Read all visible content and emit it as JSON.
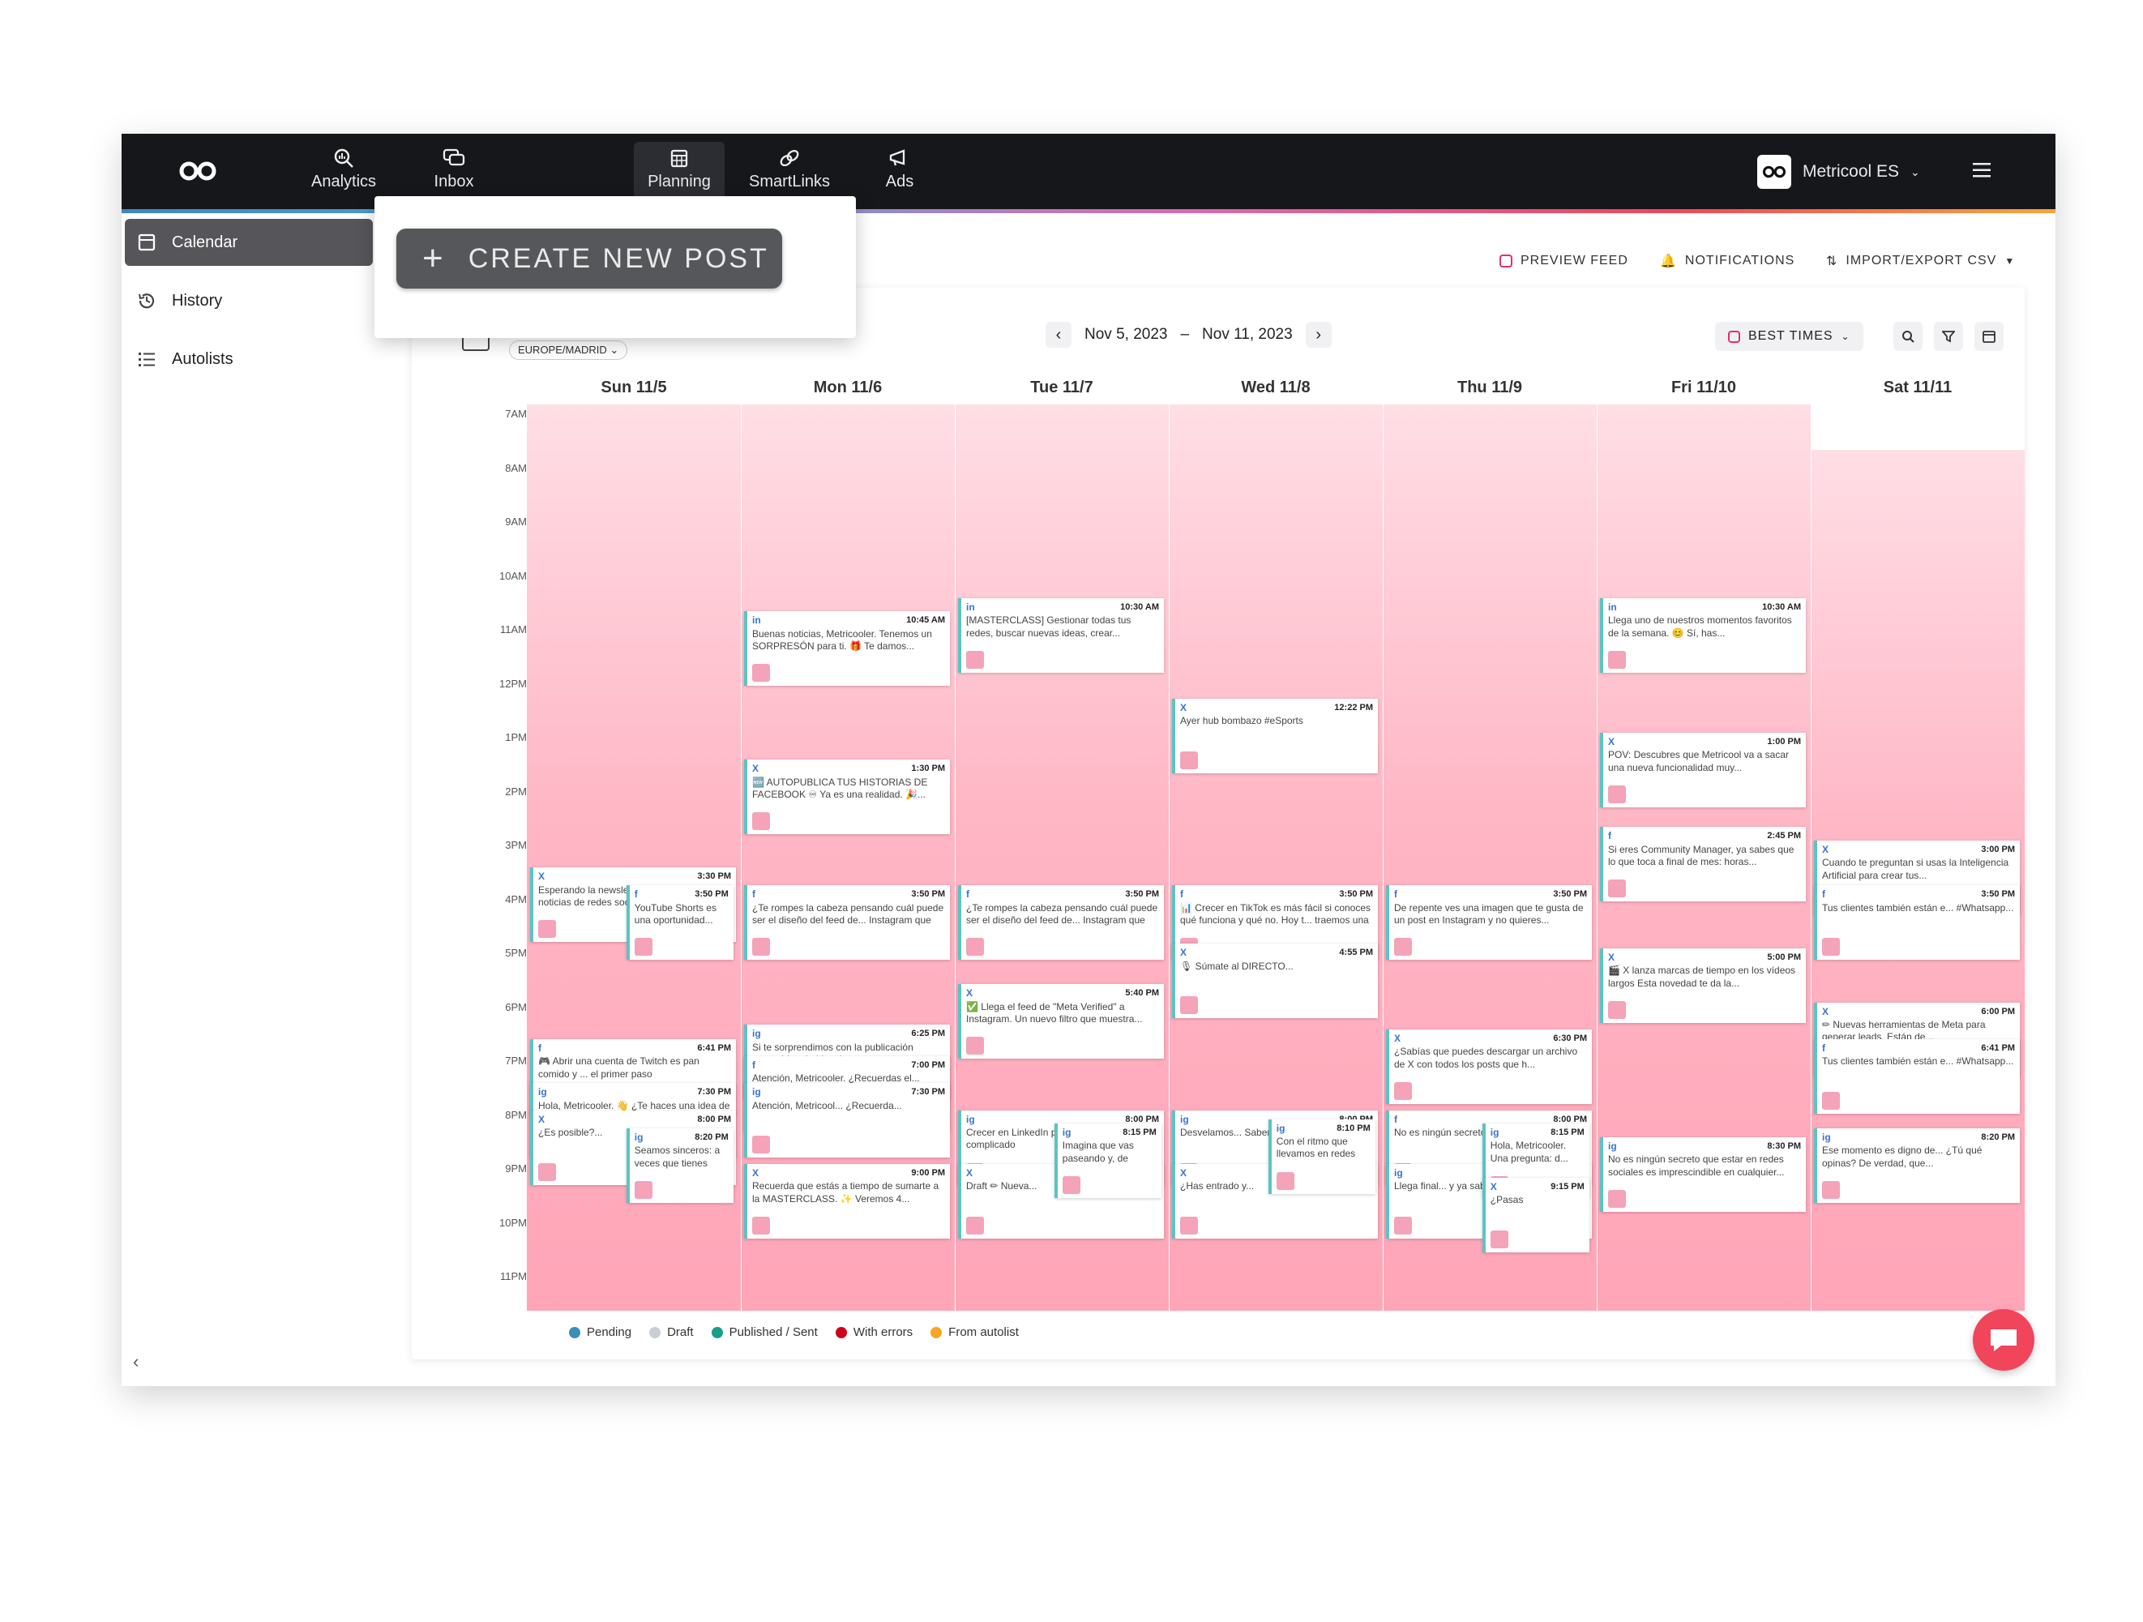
{
  "topbar": {
    "nav": [
      {
        "label": "Analytics",
        "icon": "analytics-icon"
      },
      {
        "label": "Inbox",
        "icon": "inbox-icon"
      },
      {
        "label": "Planning",
        "icon": "calendar-icon"
      },
      {
        "label": "SmartLinks",
        "icon": "link-icon"
      },
      {
        "label": "Ads",
        "icon": "megaphone-icon"
      }
    ],
    "active_nav": "Planning",
    "account": "Metricool ES"
  },
  "sidebar": {
    "items": [
      {
        "label": "Calendar",
        "icon": "calendar-icon",
        "active": true
      },
      {
        "label": "History",
        "icon": "history-icon",
        "active": false
      },
      {
        "label": "Autolists",
        "icon": "list-icon",
        "active": false
      }
    ]
  },
  "popup": {
    "create_label": "CREATE NEW POST"
  },
  "toolbar": {
    "preview_feed": "PREVIEW FEED",
    "notifications": "NOTIFICATIONS",
    "import_export": "IMPORT/EXPORT CSV"
  },
  "calendar": {
    "timezone": "EUROPE/MADRID",
    "range_start": "Nov 5, 2023",
    "range_sep": "–",
    "range_end": "Nov 11, 2023",
    "best_times": "BEST TIMES",
    "days": [
      "Sun 11/5",
      "Mon 11/6",
      "Tue 11/7",
      "Wed 11/8",
      "Thu 11/9",
      "Fri 11/10",
      "Sat 11/11"
    ],
    "hours": [
      "7AM",
      "8AM",
      "9AM",
      "10AM",
      "11AM",
      "12PM",
      "1PM",
      "2PM",
      "3PM",
      "4PM",
      "5PM",
      "6PM",
      "7PM",
      "8PM",
      "9PM",
      "10PM",
      "11PM"
    ],
    "posts": [
      {
        "day": 1,
        "time": "10:45 AM",
        "net": "in",
        "text": "Buenas noticias, Metricooler. Tenemos un SORPRESÓN para ti. 🎁 Te damos..."
      },
      {
        "day": 2,
        "time": "10:30 AM",
        "net": "in",
        "text": "[MASTERCLASS] Gestionar todas tus redes, buscar nuevas ideas, crear..."
      },
      {
        "day": 5,
        "time": "10:30 AM",
        "net": "in",
        "text": "Llega uno de nuestros momentos favoritos de la semana. 😊 Sí, has..."
      },
      {
        "day": 3,
        "time": "12:22 PM",
        "net": "X",
        "text": "Ayer hub bombazo #eSports"
      },
      {
        "day": 1,
        "time": "1:30 PM",
        "net": "X",
        "text": "🆕 AUTOPUBLICA TUS HISTORIAS DE FACEBOOK ♾ Ya es una realidad. 🎉..."
      },
      {
        "day": 5,
        "time": "1:00 PM",
        "net": "X",
        "text": "POV: Descubres que Metricool va a sacar una nueva funcionalidad muy..."
      },
      {
        "day": 5,
        "time": "2:45 PM",
        "net": "f",
        "text": "Si eres Community Manager, ya sabes que lo que toca a final de mes: horas..."
      },
      {
        "day": 0,
        "time": "3:30 PM",
        "net": "X",
        "text": "Esperando la newsletter con todas las noticias de redes sociales"
      },
      {
        "day": 0,
        "time": "3:50 PM",
        "net": "f",
        "text": "YouTube Shorts es una oportunidad... para compartir"
      },
      {
        "day": 6,
        "time": "3:00 PM",
        "net": "X",
        "text": "Cuando te preguntan si usas la Inteligencia Artificial para crear tus..."
      },
      {
        "day": 1,
        "time": "3:50 PM",
        "net": "f",
        "text": "¿Te rompes la cabeza pensando cuál puede ser el diseño del feed de... Instagram que más encaje con la"
      },
      {
        "day": 2,
        "time": "3:50 PM",
        "net": "f",
        "text": "¿Te rompes la cabeza pensando cuál puede ser el diseño del feed de... Instagram que más encaje con la"
      },
      {
        "day": 3,
        "time": "3:50 PM",
        "net": "f",
        "text": "📊 Crecer en TikTok es más fácil si conoces qué funciona y qué no. Hoy t... traemos una guía completa para que"
      },
      {
        "day": 4,
        "time": "3:50 PM",
        "net": "f",
        "text": "De repente ves una imagen que te gusta de un post en Instagram y no quieres... perdería por nada del mundo. ¿Te ha"
      },
      {
        "day": 6,
        "time": "3:50 PM",
        "net": "f",
        "text": "Tus clientes también están e... #Whatsapp..."
      },
      {
        "day": 3,
        "time": "4:55 PM",
        "net": "X",
        "text": "🎙 Súmate al DIRECTO..."
      },
      {
        "day": 5,
        "time": "5:00 PM",
        "net": "X",
        "text": "🎬 X lanza marcas de tiempo en los vídeos largos Esta novedad te da la..."
      },
      {
        "day": 2,
        "time": "5:40 PM",
        "net": "X",
        "text": "✅ Llega el feed de \"Meta Verified\" a Instagram. Un nuevo filtro que muestra..."
      },
      {
        "day": 6,
        "time": "6:00 PM",
        "net": "X",
        "text": "✏ Nuevas herramientas de Meta para generar leads. Están de..."
      },
      {
        "day": 1,
        "time": "6:25 PM",
        "net": "ig",
        "text": "Si te sorprendimos con la publicación automática de historias..."
      },
      {
        "day": 4,
        "time": "6:30 PM",
        "net": "X",
        "text": "¿Sabías que puedes descargar un archivo de X con todos los posts que h..."
      },
      {
        "day": 0,
        "time": "6:41 PM",
        "net": "f",
        "text": "🎮 Abrir una cuenta de Twitch es pan comido y ... el primer paso"
      },
      {
        "day": 6,
        "time": "6:41 PM",
        "net": "f",
        "text": "Tus clientes también están e... #Whatsapp..."
      },
      {
        "day": 1,
        "time": "7:00 PM",
        "net": "f",
        "text": "Atención, Metricooler. ¿Recuerdas el..."
      },
      {
        "day": 0,
        "time": "7:30 PM",
        "net": "ig",
        "text": "Hola, Metricooler. 👋 ¿Te haces una idea de lo que ha pasado..."
      },
      {
        "day": 1,
        "time": "7:30 PM",
        "net": "ig",
        "text": "Atención, Metricool... ¿Recuerda..."
      },
      {
        "day": 0,
        "time": "8:00 PM",
        "net": "X",
        "text": "¿Es posible?..."
      },
      {
        "day": 2,
        "time": "8:00 PM",
        "net": "ig",
        "text": "Crecer en LinkedIn puede parecer complicado"
      },
      {
        "day": 3,
        "time": "8:00 PM",
        "net": "ig",
        "text": "Desvelamos... Sabemos cuál..."
      },
      {
        "day": 4,
        "time": "8:00 PM",
        "net": "f",
        "text": "No es ningún secreto que..."
      },
      {
        "day": 3,
        "time": "8:10 PM",
        "net": "ig",
        "text": "Con el ritmo que llevamos en redes sociales, es fá..."
      },
      {
        "day": 2,
        "time": "8:15 PM",
        "net": "ig",
        "text": "Imagina que vas paseando y, de repente,..."
      },
      {
        "day": 4,
        "time": "8:15 PM",
        "net": "ig",
        "text": "Hola, Metricooler. Una pregunta: d..."
      },
      {
        "day": 0,
        "time": "8:20 PM",
        "net": "ig",
        "text": "Seamos sinceros: a veces que tienes días con la... inspiración por el suelo"
      },
      {
        "day": 6,
        "time": "8:20 PM",
        "net": "ig",
        "text": "Ese momento es digno de... ¿Tú qué opinas? De verdad, que..."
      },
      {
        "day": 5,
        "time": "8:30 PM",
        "net": "ig",
        "text": "No es ningún secreto que estar en redes sociales es imprescindible en cualquier..."
      },
      {
        "day": 1,
        "time": "9:00 PM",
        "net": "X",
        "text": "Recuerda que estás a tiempo de sumarte a la MASTERCLASS. ✨ Veremos 4..."
      },
      {
        "day": 2,
        "time": "9:00 PM",
        "net": "X",
        "text": "Draft ✏ Nueva..."
      },
      {
        "day": 3,
        "time": "9:00 PM",
        "net": "X",
        "text": "¿Has entrado y..."
      },
      {
        "day": 4,
        "time": "9:00 PM",
        "net": "ig",
        "text": "Llega final... y ya sabe..."
      },
      {
        "day": 4,
        "time": "9:15 PM",
        "net": "X",
        "text": "¿Pasas"
      }
    ]
  },
  "legend": [
    {
      "label": "Pending",
      "color": "#3a8fb7"
    },
    {
      "label": "Draft",
      "color": "#c9ced6"
    },
    {
      "label": "Published / Sent",
      "color": "#16a085"
    },
    {
      "label": "With errors",
      "color": "#d0021b"
    },
    {
      "label": "From autolist",
      "color": "#f5a623"
    }
  ],
  "colors": {
    "accent": "#f0455b",
    "topbar": "#16171b",
    "published": "#5cc4c1"
  }
}
